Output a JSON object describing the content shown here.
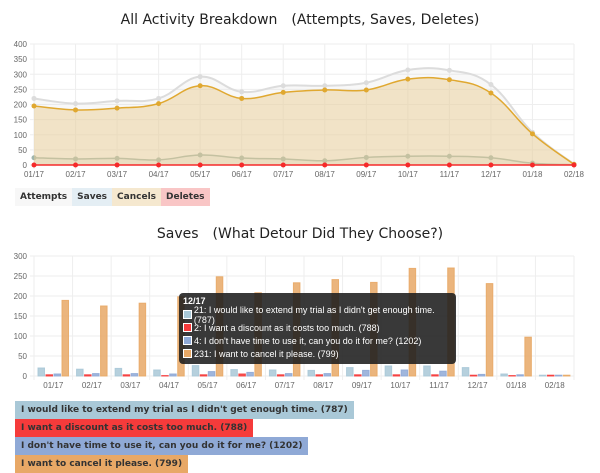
{
  "top_chart": {
    "title": "All Activity Breakdown",
    "subtitle": "(Attempts, Saves, Deletes)",
    "legend": [
      {
        "label": "Attempts",
        "bg": "#f7f7f7"
      },
      {
        "label": "Saves",
        "bg": "#e4eef4"
      },
      {
        "label": "Cancels",
        "bg": "#f5e8cf"
      },
      {
        "label": "Deletes",
        "bg": "#f9c6c6"
      }
    ]
  },
  "bottom_chart": {
    "title": "Saves",
    "subtitle": "(What Detour Did They Choose?)",
    "legend": [
      {
        "label": "I would like to extend my trial as I didn't get enough time. (787)",
        "bg": "#a9c8d7"
      },
      {
        "label": "I want a discount as it costs too much. (788)",
        "bg": "#f53b3b"
      },
      {
        "label": "I don't have time to use it, can you do it for me? (1202)",
        "bg": "#8fa9d6"
      },
      {
        "label": "I want to cancel it please. (799)",
        "bg": "#e8a866"
      }
    ],
    "tooltip": {
      "title": "12/17",
      "rows": [
        {
          "text": "21: I would like to extend my trial as I didn't get enough time. (787)",
          "color": "#a9c8d7"
        },
        {
          "text": "2: I want a discount as it costs too much. (788)",
          "color": "#f53b3b"
        },
        {
          "text": "4: I don't have time to use it, can you do it for me? (1202)",
          "color": "#8fa9d6"
        },
        {
          "text": "231: I want to cancel it please. (799)",
          "color": "#e8a866"
        }
      ]
    }
  },
  "chart_data": [
    {
      "type": "area",
      "title": "All Activity Breakdown (Attempts, Saves, Deletes)",
      "categories": [
        "01/17",
        "02/17",
        "03/17",
        "04/17",
        "05/17",
        "06/17",
        "07/17",
        "08/17",
        "09/17",
        "10/17",
        "11/17",
        "12/17",
        "01/18",
        "02/18"
      ],
      "ylim": [
        0,
        400
      ],
      "yticks": [
        0,
        50,
        100,
        150,
        200,
        250,
        300,
        350,
        400
      ],
      "grid": true,
      "legend_position": "bottom-left",
      "series": [
        {
          "name": "Attempts",
          "color": "#dcdcdc",
          "values": [
            220,
            203,
            212,
            220,
            292,
            242,
            262,
            262,
            272,
            314,
            313,
            266,
            108,
            3
          ]
        },
        {
          "name": "Saves",
          "color": "#9fb5ac",
          "values": [
            24,
            20,
            22,
            17,
            33,
            23,
            20,
            14,
            25,
            29,
            29,
            24,
            6,
            1
          ]
        },
        {
          "name": "Cancels",
          "color": "#e0a830",
          "values": [
            195,
            182,
            188,
            203,
            262,
            220,
            240,
            248,
            248,
            284,
            282,
            238,
            103,
            2
          ]
        },
        {
          "name": "Deletes",
          "color": "#f52a2a",
          "values": [
            0,
            0,
            0,
            0,
            0,
            0,
            0,
            0,
            0,
            0,
            0,
            0,
            0,
            0
          ]
        }
      ]
    },
    {
      "type": "bar",
      "title": "Saves (What Detour Did They Choose?)",
      "categories": [
        "01/17",
        "02/17",
        "03/17",
        "04/17",
        "05/17",
        "06/17",
        "07/17",
        "08/17",
        "09/17",
        "10/17",
        "11/17",
        "12/17",
        "01/18",
        "02/18"
      ],
      "ylim": [
        0,
        300
      ],
      "yticks": [
        0,
        50,
        100,
        150,
        200,
        250,
        300
      ],
      "grid": true,
      "legend_position": "bottom-left",
      "series": [
        {
          "name": "I would like to extend my trial as I didn't get enough time. (787)",
          "color": "#a9c8d7",
          "values": [
            20,
            17,
            19,
            15,
            26,
            16,
            15,
            14,
            21,
            25,
            25,
            21,
            5,
            2
          ]
        },
        {
          "name": "I want a discount as it costs too much. (788)",
          "color": "#f53b3b",
          "values": [
            3,
            3,
            3,
            1,
            3,
            5,
            3,
            3,
            3,
            3,
            3,
            2,
            1,
            2
          ]
        },
        {
          "name": "I don't have time to use it, can you do it for me? (1202)",
          "color": "#8fa9d6",
          "values": [
            5,
            6,
            6,
            5,
            11,
            9,
            6,
            6,
            14,
            15,
            12,
            4,
            3,
            2
          ]
        },
        {
          "name": "I want to cancel it please. (799)",
          "color": "#e8a866",
          "values": [
            189,
            175,
            182,
            198,
            248,
            208,
            233,
            241,
            234,
            269,
            270,
            231,
            97,
            2
          ]
        }
      ]
    }
  ]
}
